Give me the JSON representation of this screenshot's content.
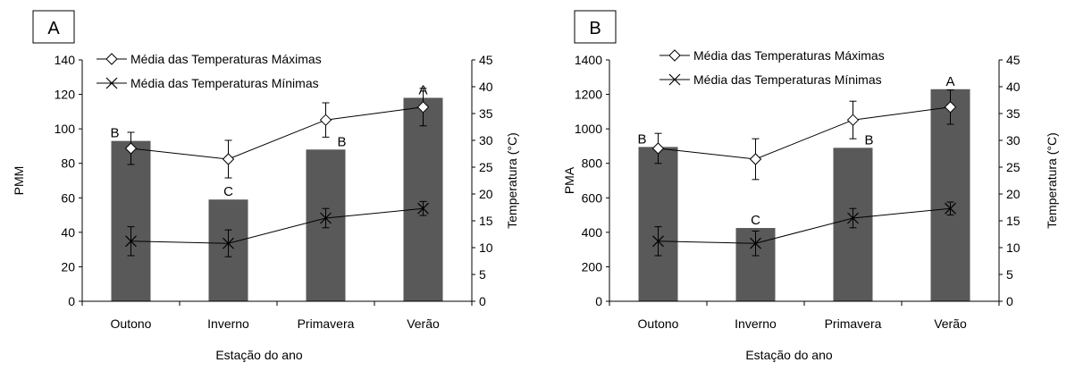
{
  "chart_data": [
    {
      "panel_label": "A",
      "type": "bar",
      "categories": [
        "Outono",
        "Inverno",
        "Primavera",
        "Verão"
      ],
      "xlabel": "Estação do ano",
      "ylabel": "PMM",
      "ylim": [
        0,
        140
      ],
      "yticks": [
        "0",
        "20",
        "40",
        "60",
        "80",
        "100",
        "120",
        "140"
      ],
      "y2label": "Temperatura (°C)",
      "y2lim": [
        0,
        45
      ],
      "y2ticks": [
        "0",
        "5",
        "10",
        "15",
        "20",
        "25",
        "30",
        "35",
        "40",
        "45"
      ],
      "bars": {
        "values": [
          93,
          59,
          88,
          118
        ],
        "letters": [
          "B",
          "C",
          "B",
          "A"
        ],
        "color": "#595959"
      },
      "series": [
        {
          "name": "Média das Temperaturas  Máximas",
          "marker": "diamond",
          "axis": "y2",
          "values": [
            28.5,
            26.5,
            33.8,
            36.2
          ],
          "err": [
            3,
            3.5,
            3.2,
            3.5
          ]
        },
        {
          "name": "Média das Temperaturas  Mínimas",
          "marker": "x",
          "axis": "y2",
          "values": [
            11.2,
            10.8,
            15.5,
            17.3
          ],
          "err": [
            2.7,
            2.5,
            1.8,
            1.3
          ]
        }
      ],
      "legend": "top-left"
    },
    {
      "panel_label": "B",
      "type": "bar",
      "categories": [
        "Outono",
        "Inverno",
        "Primavera",
        "Verão"
      ],
      "xlabel": "Estação do ano",
      "ylabel": "PMA",
      "ylim": [
        0,
        1400
      ],
      "yticks": [
        "0",
        "200",
        "400",
        "600",
        "800",
        "1000",
        "1200",
        "1400"
      ],
      "y2label": "Temperatura (°C)",
      "y2lim": [
        0,
        45
      ],
      "y2ticks": [
        "0",
        "5",
        "10",
        "15",
        "20",
        "25",
        "30",
        "35",
        "40",
        "45"
      ],
      "bars": {
        "values": [
          895,
          425,
          890,
          1230
        ],
        "letters": [
          "B",
          "C",
          "B",
          "A"
        ],
        "color": "#595959"
      },
      "series": [
        {
          "name": "Média das Temperaturas  Máximas",
          "marker": "diamond",
          "axis": "y2",
          "values": [
            28.5,
            26.5,
            33.8,
            36.2
          ],
          "err": [
            2.8,
            3.8,
            3.5,
            3.2
          ]
        },
        {
          "name": "Média das Temperaturas  Mínimas",
          "marker": "x",
          "axis": "y2",
          "values": [
            11.2,
            10.8,
            15.5,
            17.3
          ],
          "err": [
            2.7,
            2.3,
            1.8,
            1.2
          ]
        }
      ],
      "legend": "top-left"
    }
  ]
}
